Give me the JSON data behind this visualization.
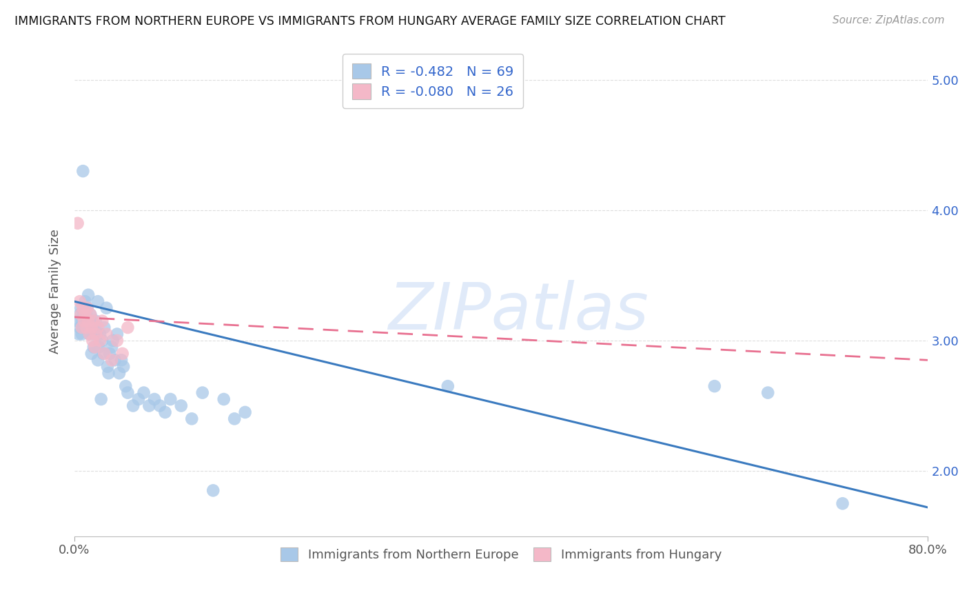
{
  "title": "IMMIGRANTS FROM NORTHERN EUROPE VS IMMIGRANTS FROM HUNGARY AVERAGE FAMILY SIZE CORRELATION CHART",
  "source": "Source: ZipAtlas.com",
  "ylabel": "Average Family Size",
  "xlim": [
    0.0,
    0.8
  ],
  "ylim": [
    1.5,
    5.25
  ],
  "yticks": [
    2.0,
    3.0,
    4.0,
    5.0
  ],
  "xtick_labels": [
    "0.0%",
    "80.0%"
  ],
  "ytick_labels_right": [
    "2.00",
    "3.00",
    "4.00",
    "5.00"
  ],
  "blue_R": -0.482,
  "blue_N": 69,
  "pink_R": -0.08,
  "pink_N": 26,
  "blue_color": "#a8c8e8",
  "pink_color": "#f4b8c8",
  "blue_line_color": "#3a7abf",
  "pink_line_color": "#e87090",
  "blue_line_x0": 0.0,
  "blue_line_y0": 3.3,
  "blue_line_x1": 0.8,
  "blue_line_y1": 1.72,
  "pink_line_x0": 0.0,
  "pink_line_y0": 3.18,
  "pink_line_x1": 0.8,
  "pink_line_y1": 2.85,
  "watermark": "ZIPatlas",
  "blue_scatter_x": [
    0.003,
    0.004,
    0.005,
    0.005,
    0.006,
    0.007,
    0.007,
    0.008,
    0.008,
    0.009,
    0.01,
    0.01,
    0.011,
    0.011,
    0.012,
    0.013,
    0.013,
    0.014,
    0.014,
    0.015,
    0.015,
    0.016,
    0.016,
    0.017,
    0.018,
    0.018,
    0.019,
    0.02,
    0.021,
    0.022,
    0.022,
    0.023,
    0.024,
    0.025,
    0.026,
    0.027,
    0.028,
    0.03,
    0.031,
    0.032,
    0.033,
    0.035,
    0.036,
    0.038,
    0.04,
    0.042,
    0.044,
    0.046,
    0.048,
    0.05,
    0.055,
    0.06,
    0.065,
    0.07,
    0.075,
    0.08,
    0.085,
    0.09,
    0.1,
    0.11,
    0.12,
    0.13,
    0.14,
    0.15,
    0.16,
    0.35,
    0.6,
    0.65,
    0.72
  ],
  "blue_scatter_y": [
    3.15,
    3.05,
    3.2,
    3.1,
    3.25,
    3.15,
    3.05,
    4.3,
    3.1,
    3.2,
    3.3,
    3.15,
    3.1,
    3.2,
    3.25,
    3.35,
    3.1,
    3.15,
    3.05,
    3.2,
    3.1,
    3.15,
    2.9,
    3.1,
    3.05,
    2.95,
    3.1,
    3.15,
    3.05,
    3.3,
    2.85,
    2.95,
    3.05,
    2.55,
    3.0,
    2.9,
    3.1,
    3.25,
    2.8,
    2.75,
    2.9,
    2.95,
    3.0,
    2.85,
    3.05,
    2.75,
    2.85,
    2.8,
    2.65,
    2.6,
    2.5,
    2.55,
    2.6,
    2.5,
    2.55,
    2.5,
    2.45,
    2.55,
    2.5,
    2.4,
    2.6,
    1.85,
    2.55,
    2.4,
    2.45,
    2.65,
    2.65,
    2.6,
    1.75
  ],
  "pink_scatter_x": [
    0.003,
    0.005,
    0.006,
    0.007,
    0.008,
    0.009,
    0.01,
    0.011,
    0.012,
    0.013,
    0.014,
    0.015,
    0.016,
    0.017,
    0.018,
    0.019,
    0.02,
    0.022,
    0.024,
    0.026,
    0.028,
    0.03,
    0.035,
    0.04,
    0.045,
    0.05
  ],
  "pink_scatter_y": [
    3.9,
    3.3,
    3.2,
    3.1,
    3.25,
    3.15,
    3.2,
    3.1,
    3.25,
    3.15,
    3.05,
    3.2,
    3.1,
    3.0,
    3.15,
    2.95,
    3.05,
    3.1,
    3.0,
    3.15,
    2.9,
    3.05,
    2.85,
    3.0,
    2.9,
    3.1
  ]
}
